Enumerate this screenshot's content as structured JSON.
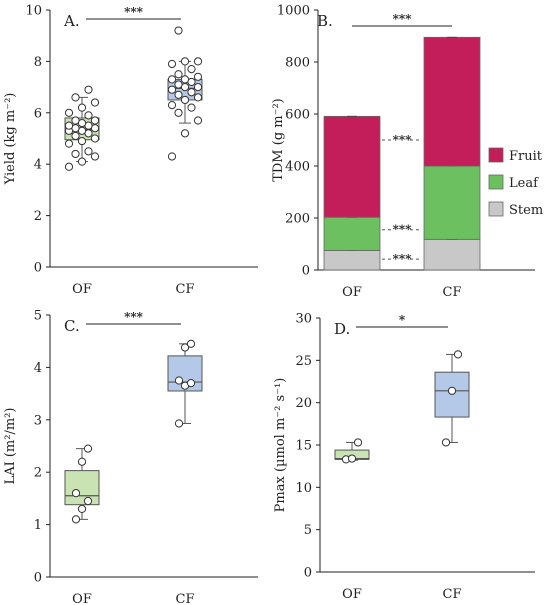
{
  "colors": {
    "of_fill": "#c9e3b3",
    "cf_fill": "#b4c8e8",
    "box_stroke": "#555555",
    "fruit": "#c41e5a",
    "leaf": "#6cc060",
    "stem": "#c8c8c8"
  },
  "chart_data": [
    {
      "type": "box",
      "panel": "A.",
      "ylabel": "Yield (kg m⁻²)",
      "ylim": [
        0,
        10
      ],
      "yticks": [
        0,
        2,
        4,
        6,
        8,
        10
      ],
      "categories": [
        "OF",
        "CF"
      ],
      "significance": "***",
      "boxes": [
        {
          "category": "OF",
          "min": 4.1,
          "q1": 4.95,
          "median": 5.35,
          "q3": 5.8,
          "max": 6.6,
          "points": [
            3.9,
            4.1,
            4.3,
            4.4,
            4.5,
            4.8,
            4.9,
            5.0,
            5.1,
            5.2,
            5.3,
            5.3,
            5.4,
            5.4,
            5.5,
            5.5,
            5.6,
            5.7,
            5.7,
            5.9,
            6.0,
            6.2,
            6.4,
            6.6,
            6.9
          ]
        },
        {
          "category": "CF",
          "min": 5.6,
          "q1": 6.5,
          "median": 6.95,
          "q3": 7.3,
          "max": 8.0,
          "points": [
            4.3,
            5.2,
            5.7,
            6.0,
            6.2,
            6.3,
            6.5,
            6.6,
            6.7,
            6.8,
            6.9,
            7.0,
            7.0,
            7.1,
            7.2,
            7.3,
            7.3,
            7.4,
            7.5,
            7.7,
            7.9,
            8.0,
            8.0,
            9.2
          ]
        }
      ]
    },
    {
      "type": "stacked-bar",
      "panel": "B.",
      "ylabel": "TDM (g m⁻²)",
      "ylim": [
        0,
        1000
      ],
      "yticks": [
        0,
        200,
        400,
        600,
        800,
        1000
      ],
      "categories": [
        "OF",
        "CF"
      ],
      "series": [
        {
          "name": "Stem",
          "values": [
            75,
            118
          ]
        },
        {
          "name": "Leaf",
          "values": [
            128,
            282
          ]
        },
        {
          "name": "Fruit",
          "values": [
            388,
            495
          ]
        }
      ],
      "legend": [
        "Fruit",
        "Leaf",
        "Stem"
      ],
      "legend_position": "right",
      "significance_top": "***",
      "component_significance": [
        {
          "label": "***",
          "y": 500
        },
        {
          "label": "***",
          "y": 155
        },
        {
          "label": "***",
          "y": 42
        }
      ]
    },
    {
      "type": "box",
      "panel": "C.",
      "ylabel": "LAI (m²/m²)",
      "ylim": [
        0,
        5
      ],
      "yticks": [
        0,
        1,
        2,
        3,
        4,
        5
      ],
      "categories": [
        "OF",
        "CF"
      ],
      "significance": "***",
      "boxes": [
        {
          "category": "OF",
          "min": 1.1,
          "q1": 1.38,
          "median": 1.55,
          "q3": 2.03,
          "max": 2.45,
          "points": [
            1.1,
            1.3,
            1.45,
            1.6,
            2.2,
            2.45
          ]
        },
        {
          "category": "CF",
          "min": 2.93,
          "q1": 3.55,
          "median": 3.72,
          "q3": 4.22,
          "max": 4.45,
          "points": [
            2.93,
            3.65,
            3.7,
            3.75,
            4.38,
            4.45
          ]
        }
      ]
    },
    {
      "type": "box",
      "panel": "D.",
      "ylabel": "Pmax (µmol m⁻² s⁻¹)",
      "ylim": [
        0,
        30
      ],
      "yticks": [
        0,
        5,
        10,
        15,
        20,
        25,
        30
      ],
      "categories": [
        "OF",
        "CF"
      ],
      "significance": "*",
      "boxes": [
        {
          "category": "OF",
          "min": 13.2,
          "q1": 13.3,
          "median": 13.4,
          "q3": 14.4,
          "max": 15.3,
          "points": [
            13.3,
            13.4,
            15.3
          ]
        },
        {
          "category": "CF",
          "min": 15.3,
          "q1": 18.3,
          "median": 21.4,
          "q3": 23.6,
          "max": 25.7,
          "points": [
            15.3,
            21.4,
            25.7
          ]
        }
      ]
    }
  ]
}
